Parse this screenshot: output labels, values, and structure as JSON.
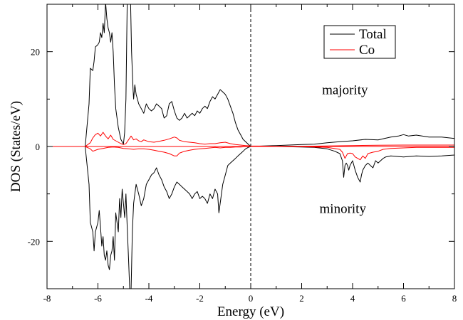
{
  "chart_data": {
    "type": "line",
    "title": "",
    "xlabel": "Energy  (eV)",
    "ylabel": "DOS (States/eV)",
    "xlim": [
      -8,
      8
    ],
    "ylim": [
      -30,
      30
    ],
    "x_ticks": [
      -8,
      -6,
      -4,
      -2,
      0,
      2,
      4,
      6,
      8
    ],
    "x_tick_labels": [
      "-8",
      "-6",
      "-4",
      "-2",
      "0",
      "2",
      "4",
      "6",
      "8"
    ],
    "y_ticks": [
      -20,
      0,
      20
    ],
    "y_tick_labels": [
      "-20",
      "0",
      "20"
    ],
    "fermi_level_x": 0,
    "grid": false,
    "legend_position": "top-right",
    "annotations": [
      {
        "text": "majority",
        "x": 2.8,
        "y": 11
      },
      {
        "text": "minority",
        "x": 2.7,
        "y": -14
      }
    ],
    "series": [
      {
        "name": "Total",
        "color": "#000000",
        "segments": [
          {
            "channel": "majority",
            "x": [
              -8,
              -6.5,
              -6.35,
              -6.3,
              -6.2,
              -6.15,
              -6.1,
              -6.0,
              -5.95,
              -5.9,
              -5.85,
              -5.8,
              -5.75,
              -5.7,
              -5.65,
              -5.6,
              -5.55,
              -5.5,
              -5.45,
              -5.4,
              -5.35,
              -5.3,
              -5.2,
              -5.1,
              -5.0,
              -4.95,
              -4.9,
              -4.85,
              -4.8,
              -4.75,
              -4.72,
              -4.68,
              -4.62,
              -4.6,
              -4.55,
              -4.5,
              -4.45,
              -4.4,
              -4.3,
              -4.2,
              -4.1,
              -4.0,
              -3.9,
              -3.8,
              -3.7,
              -3.6,
              -3.5,
              -3.4,
              -3.3,
              -3.2,
              -3.1,
              -3.0,
              -2.9,
              -2.8,
              -2.7,
              -2.6,
              -2.5,
              -2.4,
              -2.3,
              -2.2,
              -2.1,
              -2.0,
              -1.9,
              -1.8,
              -1.7,
              -1.6,
              -1.5,
              -1.4,
              -1.3,
              -1.2,
              -1.1,
              -1.0,
              -0.9,
              -0.8,
              -0.7,
              -0.6,
              -0.5,
              -0.4,
              -0.3,
              -0.2,
              -0.1,
              0,
              0.5,
              1,
              1.5,
              2,
              2.5,
              3,
              3.5,
              4,
              4.5,
              5,
              5.5,
              5.8,
              6,
              6.2,
              6.5,
              7,
              7.5,
              8
            ],
            "y": [
              0,
              0,
              9,
              16.5,
              16.0,
              18.0,
              21.0,
              21.5,
              22.0,
              24.0,
              23.0,
              26.0,
              24.0,
              30.5,
              27.0,
              25.0,
              24.0,
              22.0,
              24.0,
              20.0,
              13.0,
              8.0,
              4.0,
              1.5,
              0.5,
              3.0,
              10.0,
              30.5,
              30.5,
              30.5,
              30.5,
              20.0,
              12.0,
              10.0,
              13.0,
              11.0,
              10.0,
              9.0,
              8.0,
              7.0,
              9.0,
              8.0,
              7.5,
              8.0,
              9.0,
              8.5,
              8.0,
              6.0,
              6.5,
              9.0,
              9.5,
              7.5,
              6.0,
              5.5,
              6.0,
              7.0,
              6.0,
              6.5,
              7.0,
              6.5,
              7.5,
              7.0,
              8.0,
              8.5,
              8.0,
              9.5,
              10.5,
              10.0,
              11.0,
              12.0,
              11.5,
              11.0,
              10.0,
              8.5,
              7.0,
              5.0,
              3.5,
              2.5,
              1.5,
              1.0,
              0.5,
              0,
              0.1,
              0.2,
              0.3,
              0.4,
              0.5,
              0.8,
              1.0,
              1.2,
              1.5,
              1.4,
              2.0,
              2.2,
              2.5,
              2.2,
              2.4,
              2.0,
              2.0,
              1.7
            ]
          },
          {
            "channel": "minority",
            "x": [
              -8,
              -6.5,
              -6.35,
              -6.3,
              -6.2,
              -6.15,
              -6.1,
              -6.0,
              -5.95,
              -5.9,
              -5.85,
              -5.8,
              -5.75,
              -5.7,
              -5.65,
              -5.6,
              -5.55,
              -5.5,
              -5.45,
              -5.4,
              -5.35,
              -5.3,
              -5.25,
              -5.2,
              -5.15,
              -5.1,
              -5.05,
              -5.0,
              -4.95,
              -4.9,
              -4.85,
              -4.8,
              -4.75,
              -4.7,
              -4.65,
              -4.6,
              -4.55,
              -4.5,
              -4.4,
              -4.3,
              -4.2,
              -4.1,
              -4.0,
              -3.9,
              -3.8,
              -3.7,
              -3.6,
              -3.5,
              -3.4,
              -3.3,
              -3.2,
              -3.1,
              -3.0,
              -2.9,
              -2.8,
              -2.7,
              -2.6,
              -2.5,
              -2.4,
              -2.3,
              -2.2,
              -2.1,
              -2.0,
              -1.9,
              -1.8,
              -1.7,
              -1.6,
              -1.5,
              -1.4,
              -1.3,
              -1.25,
              -1.2,
              -1.1,
              -1.0,
              -0.9,
              -0.8,
              -0.7,
              -0.6,
              -0.5,
              -0.4,
              -0.3,
              -0.2,
              -0.1,
              0,
              1,
              2,
              2.5,
              3,
              3.3,
              3.5,
              3.6,
              3.65,
              3.7,
              3.75,
              3.8,
              3.85,
              3.9,
              4.0,
              4.1,
              4.2,
              4.3,
              4.35,
              4.4,
              4.45,
              4.5,
              4.6,
              4.7,
              4.8,
              4.9,
              5.0,
              5.1,
              5.2,
              5.3,
              5.5,
              6,
              6.5,
              7,
              7.5,
              8
            ],
            "y": [
              0,
              0,
              -8,
              -16.0,
              -18.0,
              -22.0,
              -18.0,
              -16.0,
              -13.5,
              -17.0,
              -21.0,
              -19.0,
              -23.0,
              -24.0,
              -22.0,
              -25.0,
              -26.0,
              -23.0,
              -22.0,
              -19.0,
              -24.0,
              -14.0,
              -16.0,
              -18.0,
              -11.0,
              -15.0,
              -9.0,
              -12.0,
              -15.0,
              -10.0,
              -17.0,
              -23.5,
              -30.5,
              -30.5,
              -18.0,
              -12.0,
              -10.0,
              -8.0,
              -10.0,
              -12.5,
              -11.0,
              -8.0,
              -7.0,
              -6.0,
              -5.5,
              -4.5,
              -6.0,
              -7.0,
              -8.5,
              -9.5,
              -11.0,
              -10.0,
              -8.5,
              -7.5,
              -8.0,
              -8.5,
              -9.0,
              -9.5,
              -10.0,
              -11.0,
              -10.0,
              -9.5,
              -11.0,
              -10.5,
              -11.0,
              -12.0,
              -10.0,
              -11.0,
              -9.0,
              -10.0,
              -14.0,
              -12.0,
              -8.0,
              -6.0,
              -4.0,
              -3.5,
              -3.0,
              -2.5,
              -2.0,
              -1.5,
              -1.0,
              -0.5,
              -0.2,
              0,
              0,
              -0.1,
              -0.2,
              -0.5,
              -1.0,
              -1.5,
              -3.0,
              -6.5,
              -4.0,
              -3.5,
              -4.0,
              -5.0,
              -4.0,
              -3.0,
              -5.0,
              -6.5,
              -7.5,
              -6.0,
              -5.0,
              -4.5,
              -4.0,
              -3.5,
              -4.0,
              -4.5,
              -3.0,
              -3.5,
              -3.0,
              -2.5,
              -2.2,
              -2.0,
              -2.2,
              -2.0,
              -2.1,
              -2.0,
              -1.8
            ]
          }
        ]
      },
      {
        "name": "Co",
        "color": "#ff0000",
        "segments": [
          {
            "channel": "majority",
            "x": [
              -8,
              -6.5,
              -6.3,
              -6.2,
              -6.1,
              -6.0,
              -5.9,
              -5.8,
              -5.7,
              -5.6,
              -5.5,
              -5.4,
              -5.3,
              -5.2,
              -5.1,
              -5.0,
              -4.9,
              -4.8,
              -4.7,
              -4.6,
              -4.5,
              -4.4,
              -4.3,
              -4.2,
              -4.0,
              -3.8,
              -3.6,
              -3.4,
              -3.2,
              -3.0,
              -2.9,
              -2.8,
              -2.6,
              -2.4,
              -2.2,
              -2.0,
              -1.8,
              -1.6,
              -1.4,
              -1.2,
              -1.0,
              -0.8,
              -0.6,
              -0.4,
              -0.2,
              0,
              1,
              2,
              3,
              4,
              5,
              6,
              7,
              8
            ],
            "y": [
              0,
              0,
              0.8,
              1.8,
              2.5,
              2.8,
              2.2,
              3.0,
              2.2,
              1.6,
              2.4,
              1.5,
              1.2,
              0.9,
              0.6,
              0.4,
              0.6,
              1.4,
              2.2,
              1.4,
              1.6,
              1.2,
              1.0,
              1.4,
              1.0,
              0.9,
              1.1,
              1.3,
              1.6,
              2.0,
              1.8,
              1.3,
              1.0,
              0.9,
              0.8,
              0.6,
              0.5,
              0.6,
              0.6,
              0.8,
              0.9,
              0.6,
              0.4,
              0.3,
              0.2,
              0.1,
              0.05,
              0.05,
              0.1,
              0.2,
              0.25,
              0.3,
              0.3,
              0.3
            ]
          },
          {
            "channel": "minority",
            "x": [
              -8,
              -6.5,
              -6.3,
              -6.2,
              -6.0,
              -5.8,
              -5.6,
              -5.4,
              -5.2,
              -5.0,
              -4.8,
              -4.6,
              -4.4,
              -4.2,
              -4.0,
              -3.8,
              -3.6,
              -3.4,
              -3.2,
              -3.0,
              -2.9,
              -2.8,
              -2.6,
              -2.4,
              -2.2,
              -2.0,
              -1.8,
              -1.6,
              -1.4,
              -1.2,
              -1.0,
              -0.8,
              -0.6,
              -0.4,
              -0.2,
              0,
              1,
              2,
              3,
              3.5,
              3.6,
              3.7,
              3.75,
              3.8,
              3.9,
              4.0,
              4.1,
              4.2,
              4.3,
              4.4,
              4.5,
              4.6,
              4.8,
              5.0,
              5.2,
              5.5,
              6,
              6.5,
              7,
              8
            ],
            "y": [
              0,
              0,
              -0.5,
              -1.0,
              -0.6,
              -0.4,
              -0.2,
              -0.1,
              -0.2,
              -0.4,
              -0.5,
              -0.6,
              -0.5,
              -0.5,
              -0.6,
              -0.8,
              -1.0,
              -1.2,
              -1.5,
              -2.0,
              -2.0,
              -1.4,
              -1.0,
              -0.8,
              -0.6,
              -0.5,
              -0.4,
              -0.3,
              -0.2,
              -0.3,
              -0.2,
              -0.2,
              -0.1,
              -0.1,
              -0.05,
              0,
              0,
              -0.05,
              -0.2,
              -0.6,
              -1.2,
              -2.5,
              -2.0,
              -1.5,
              -1.4,
              -1.5,
              -2.2,
              -2.5,
              -2.8,
              -2.0,
              -2.5,
              -1.5,
              -1.2,
              -1.0,
              -0.6,
              -0.4,
              -0.3,
              -0.2,
              -0.2,
              -0.2
            ]
          }
        ]
      }
    ]
  }
}
